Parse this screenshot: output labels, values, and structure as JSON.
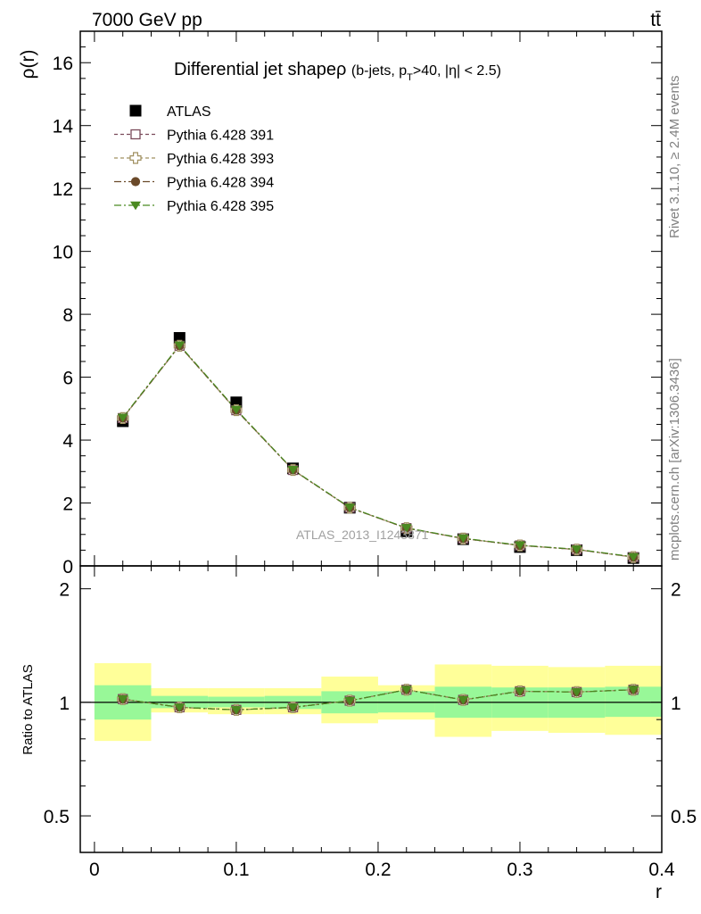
{
  "header": {
    "energy_label": "7000 GeV pp",
    "process_label": "tt̄"
  },
  "side_labels": {
    "rivet": "Rivet 3.1.10, ≥ 2.4M events",
    "mcplots": "mcplots.cern.ch [arXiv:1306.3436]"
  },
  "watermark": "ATLAS_2013_I1243871",
  "main_title": {
    "prefix": "Differential jet shapeρ ",
    "detail_1": "(b-jets, p",
    "detail_sub": "T",
    "detail_2": ">40, |η| < 2.5)"
  },
  "legend": {
    "items": [
      {
        "label": "ATLAS",
        "marker": "square-filled",
        "color": "#000000"
      },
      {
        "label": "Pythia 6.428 391",
        "marker": "square-open",
        "color": "#7a4a5a"
      },
      {
        "label": "Pythia 6.428 393",
        "marker": "cross-open",
        "color": "#a09060"
      },
      {
        "label": "Pythia 6.428 394",
        "marker": "circle-filled",
        "color": "#6b4a2a"
      },
      {
        "label": "Pythia 6.428 395",
        "marker": "triangle-down",
        "color": "#4a8a20"
      }
    ]
  },
  "chart_data": [
    {
      "type": "scatter",
      "ylabel": "ρ(r)",
      "xlim": [
        -0.01,
        0.4
      ],
      "ylim": [
        0,
        17
      ],
      "y_ticks": [
        0,
        2,
        4,
        6,
        8,
        10,
        12,
        14,
        16
      ],
      "x": [
        0.02,
        0.06,
        0.1,
        0.14,
        0.18,
        0.22,
        0.26,
        0.3,
        0.34,
        0.38
      ],
      "series": [
        {
          "name": "ATLAS",
          "values": [
            4.6,
            7.25,
            5.2,
            3.1,
            1.85,
            1.1,
            0.85,
            0.6,
            0.5,
            0.25
          ]
        },
        {
          "name": "Pythia 6.428 391",
          "values": [
            4.7,
            7.0,
            4.95,
            3.05,
            1.85,
            1.2,
            0.87,
            0.65,
            0.52,
            0.28
          ]
        },
        {
          "name": "Pythia 6.428 393",
          "values": [
            4.7,
            7.0,
            4.95,
            3.05,
            1.85,
            1.2,
            0.87,
            0.65,
            0.52,
            0.28
          ]
        },
        {
          "name": "Pythia 6.428 394",
          "values": [
            4.7,
            7.0,
            4.95,
            3.05,
            1.85,
            1.2,
            0.87,
            0.65,
            0.52,
            0.28
          ]
        },
        {
          "name": "Pythia 6.428 395",
          "values": [
            4.72,
            7.02,
            4.97,
            3.06,
            1.86,
            1.21,
            0.88,
            0.66,
            0.53,
            0.29
          ]
        }
      ]
    },
    {
      "type": "scatter",
      "xlabel": "r",
      "ylabel": "Ratio to ATLAS",
      "xlim": [
        -0.01,
        0.4
      ],
      "ylim": [
        0.4,
        2.3
      ],
      "log_y": true,
      "y_ticks": [
        0.5,
        1,
        2
      ],
      "x_ticks": [
        0,
        0.1,
        0.2,
        0.3,
        0.4
      ],
      "x_tick_labels": [
        "0",
        "0.1",
        "0.2",
        "0.3",
        "0.4"
      ],
      "bands": {
        "x_edges": [
          0.0,
          0.04,
          0.08,
          0.12,
          0.16,
          0.2,
          0.24,
          0.28,
          0.32,
          0.36,
          0.4
        ],
        "stat_low": [
          0.9,
          0.965,
          0.97,
          0.96,
          0.935,
          0.94,
          0.91,
          0.91,
          0.91,
          0.915
        ],
        "stat_high": [
          1.11,
          1.04,
          1.035,
          1.04,
          1.07,
          1.07,
          1.1,
          1.095,
          1.095,
          1.1
        ],
        "total_low": [
          0.79,
          0.94,
          0.93,
          0.93,
          0.88,
          0.9,
          0.81,
          0.84,
          0.83,
          0.82
        ],
        "total_high": [
          1.27,
          1.09,
          1.09,
          1.09,
          1.17,
          1.11,
          1.26,
          1.25,
          1.24,
          1.25
        ],
        "stat_color": "#98f898",
        "total_color": "#ffff99"
      },
      "x": [
        0.02,
        0.06,
        0.1,
        0.14,
        0.18,
        0.22,
        0.26,
        0.3,
        0.34,
        0.38
      ],
      "series": [
        {
          "name": "Pythia 6.428 391",
          "values": [
            1.02,
            0.97,
            0.955,
            0.97,
            1.01,
            1.08,
            1.015,
            1.07,
            1.065,
            1.08
          ]
        },
        {
          "name": "Pythia 6.428 393",
          "values": [
            1.02,
            0.97,
            0.955,
            0.97,
            1.01,
            1.08,
            1.015,
            1.07,
            1.065,
            1.08
          ]
        },
        {
          "name": "Pythia 6.428 394",
          "values": [
            1.02,
            0.97,
            0.955,
            0.97,
            1.01,
            1.08,
            1.015,
            1.07,
            1.065,
            1.08
          ]
        },
        {
          "name": "Pythia 6.428 395",
          "values": [
            1.02,
            0.97,
            0.955,
            0.97,
            1.01,
            1.08,
            1.015,
            1.07,
            1.065,
            1.08
          ]
        }
      ]
    }
  ]
}
